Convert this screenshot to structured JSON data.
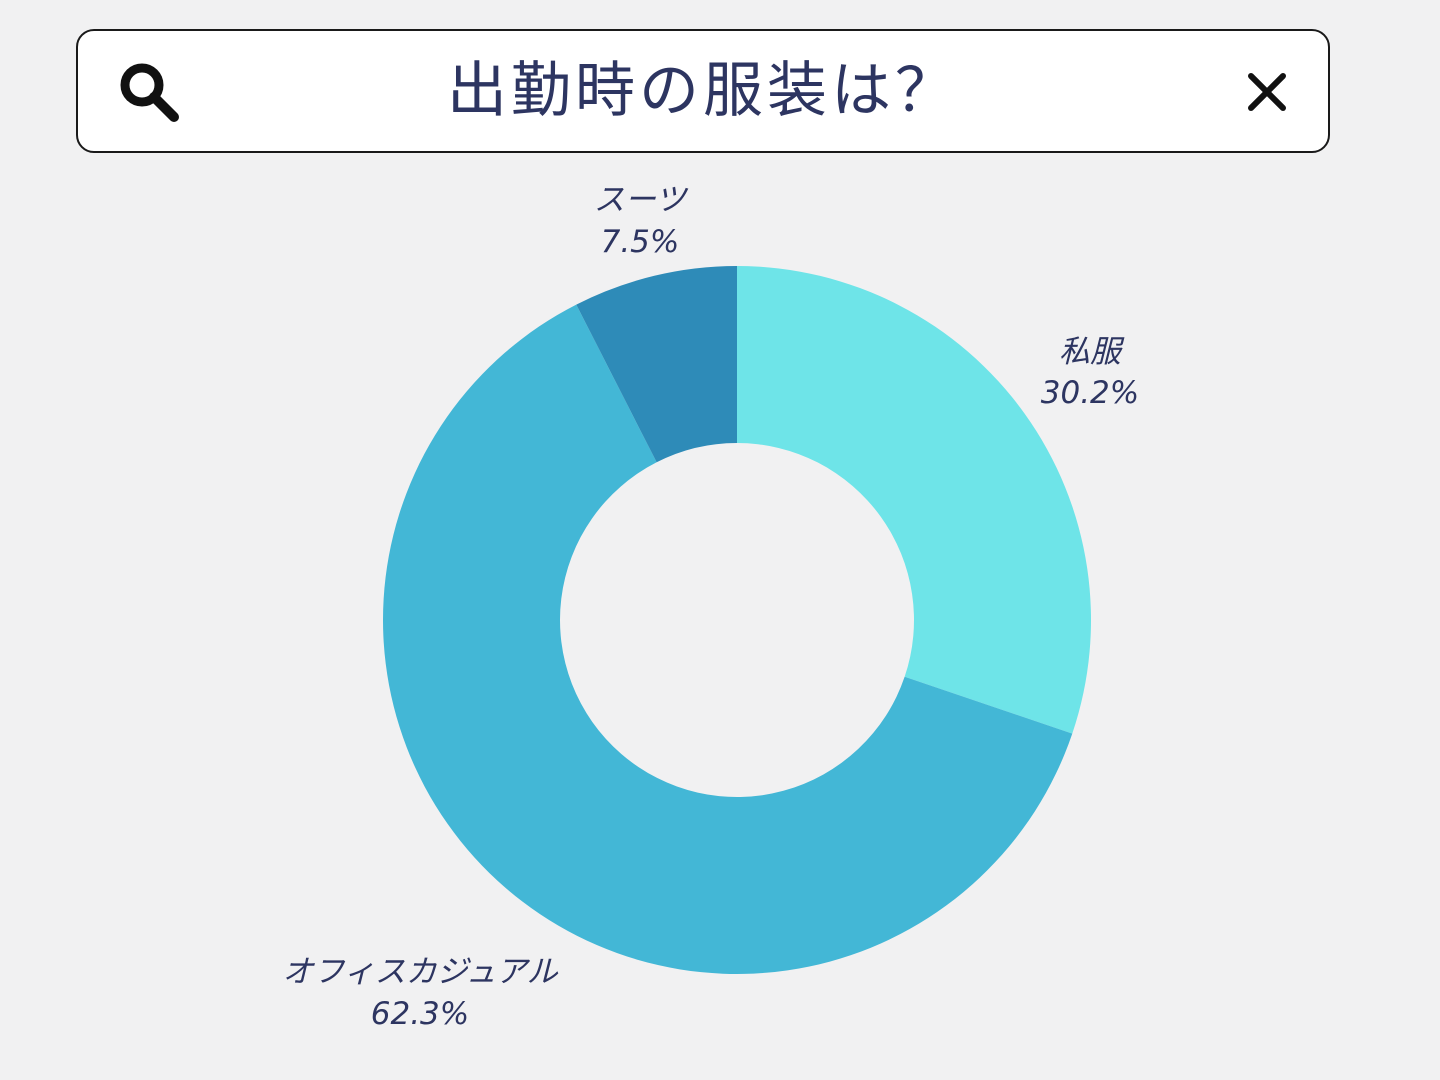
{
  "search": {
    "query": "出勤時の服装は？",
    "icon": "search-icon",
    "clear_icon": "close-icon"
  },
  "chart_data": {
    "type": "pie",
    "donut": true,
    "title": "出勤時の服装は？",
    "start_angle_deg": 0,
    "direction": "clockwise",
    "slices": [
      {
        "label": "私服",
        "value": 30.2,
        "display": "30.2%",
        "color": "#6ee4e8"
      },
      {
        "label": "オフィスカジュアル",
        "value": 62.3,
        "display": "62.3%",
        "color": "#43b7d6"
      },
      {
        "label": "スーツ",
        "value": 7.5,
        "display": "7.5%",
        "color": "#2e8bb8"
      }
    ]
  },
  "colors": {
    "background": "#f1f1f2",
    "text": "#2d3561",
    "bar_border": "#1a1a1a"
  }
}
